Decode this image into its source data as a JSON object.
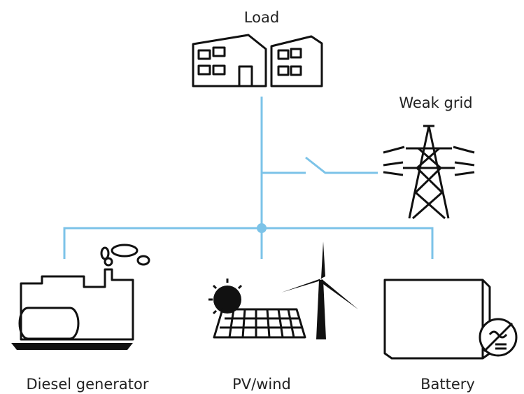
{
  "nodes": [
    {
      "label": "Load"
    },
    {
      "label": "Weak grid"
    },
    {
      "label": "Diesel generator"
    },
    {
      "label": "PV/wind"
    },
    {
      "label": "Battery"
    }
  ]
}
